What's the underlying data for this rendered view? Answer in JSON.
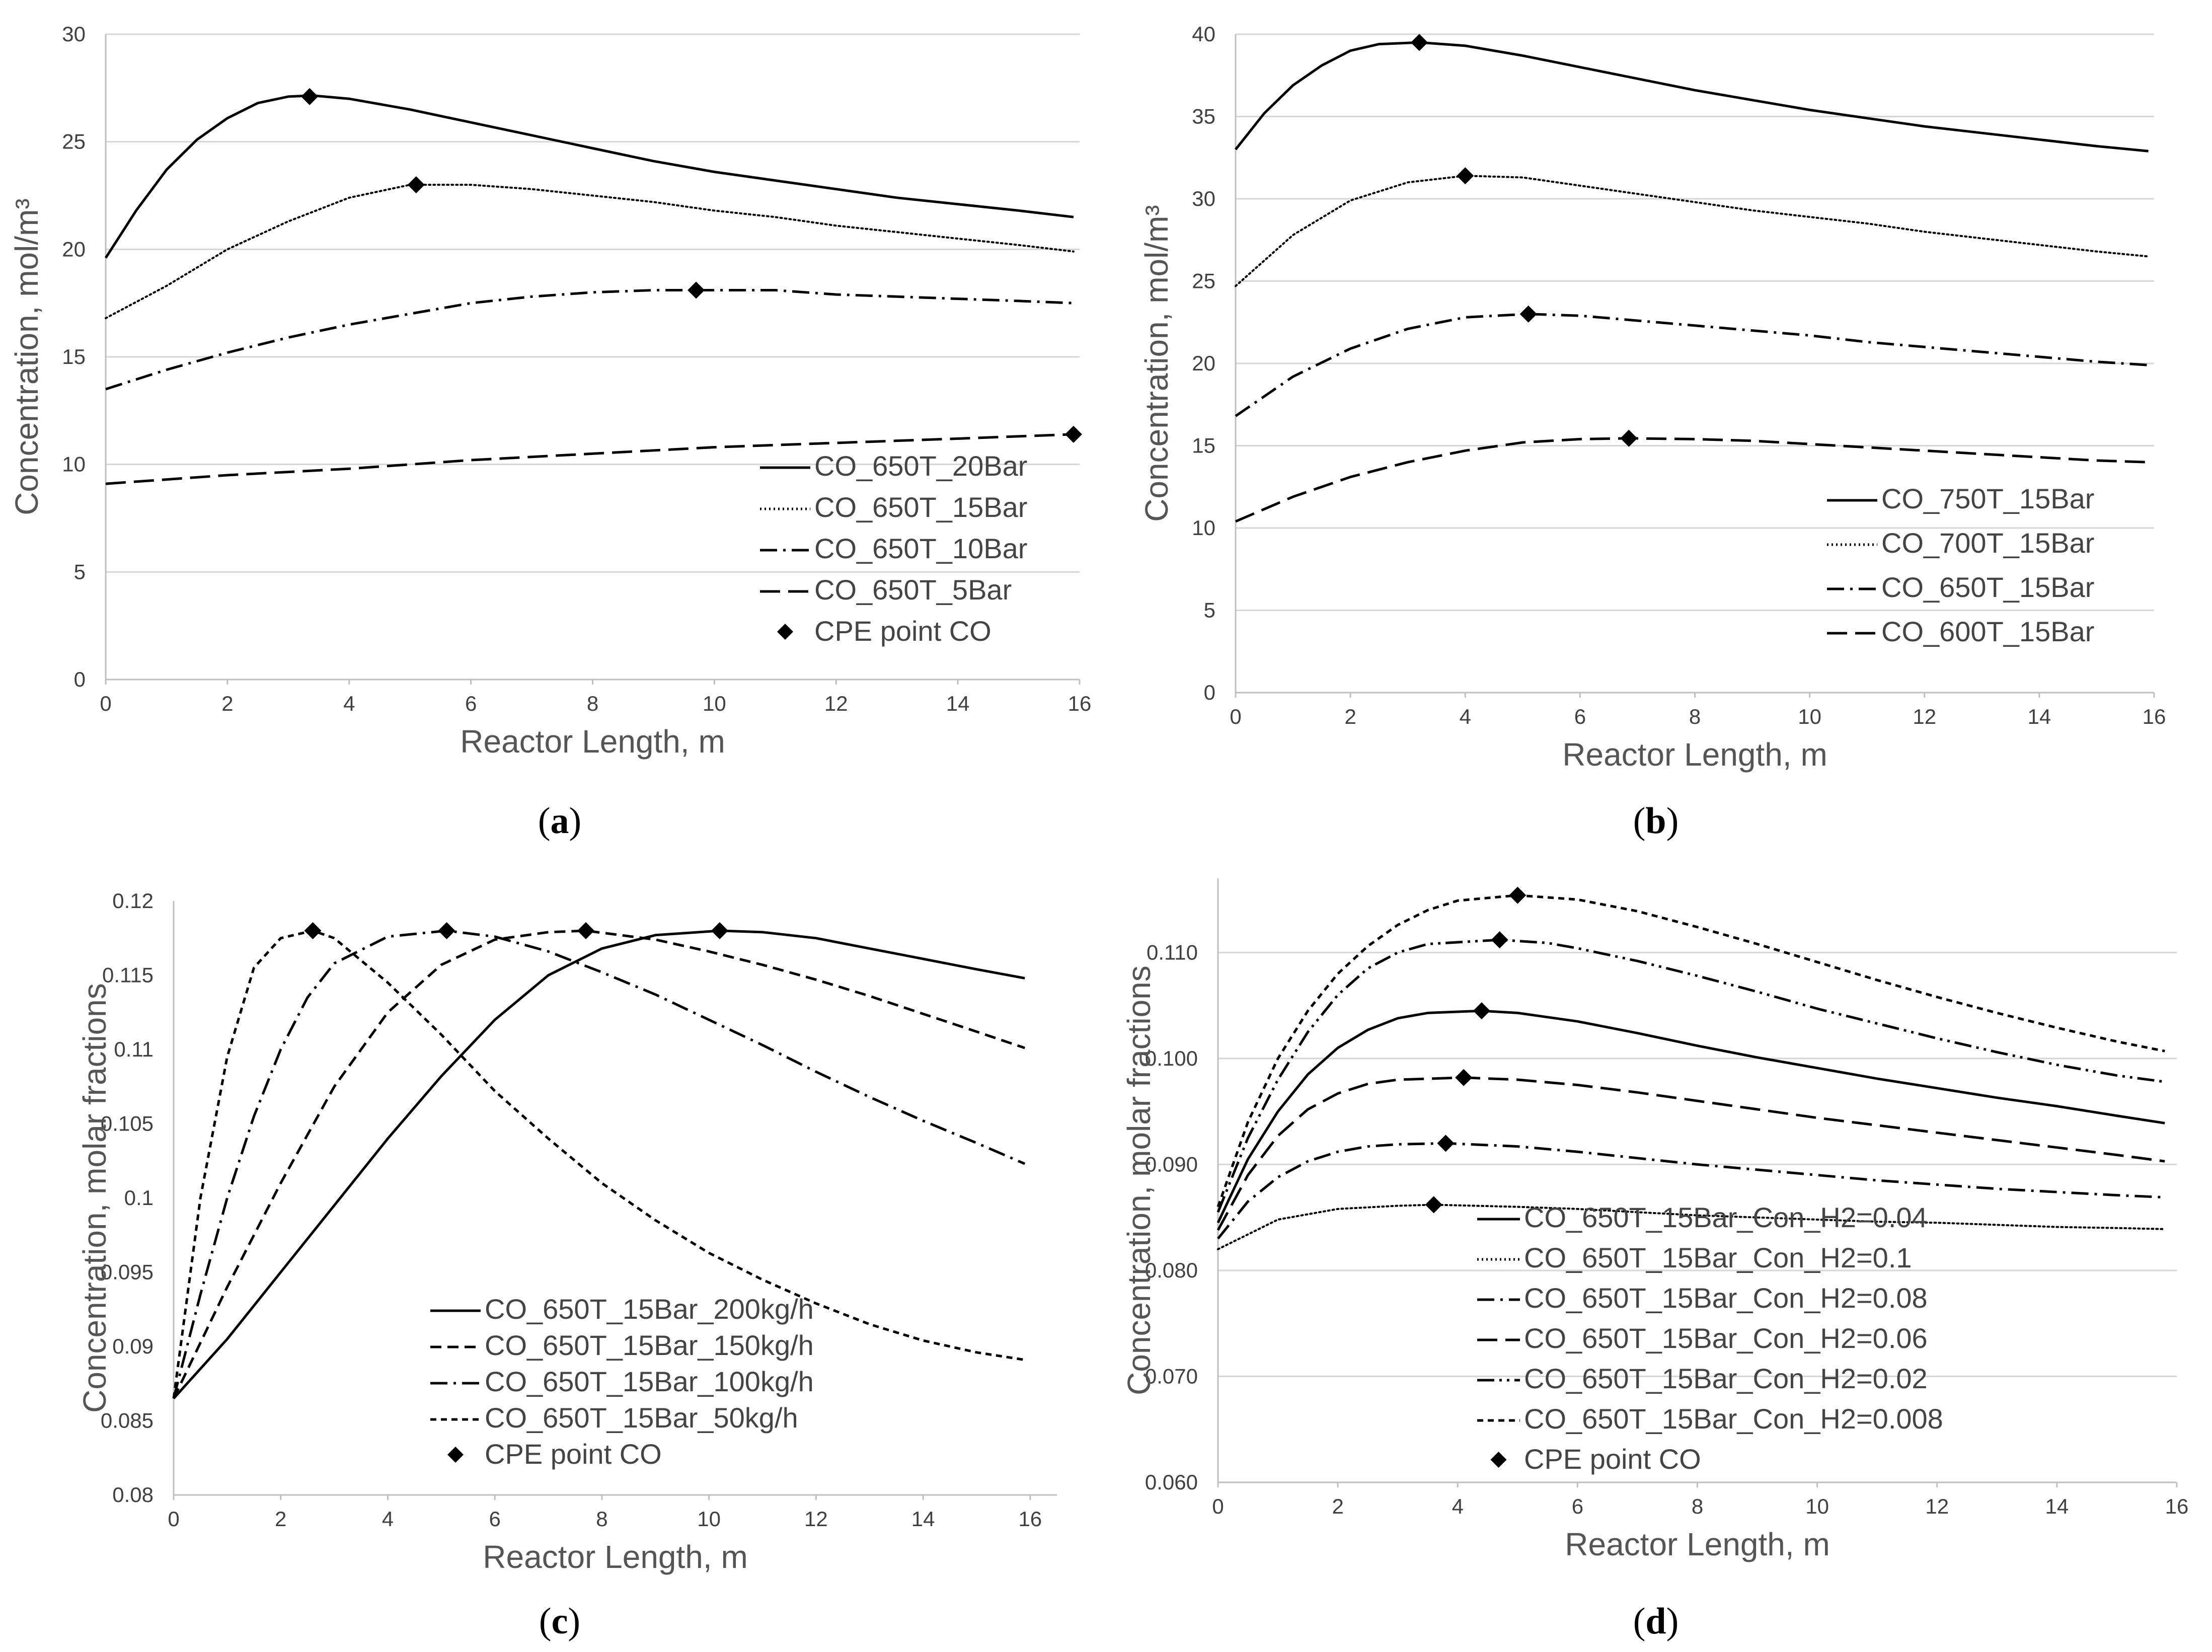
{
  "chart_data": [
    {
      "id": "a",
      "type": "line",
      "caption": [
        "(",
        "a",
        ")"
      ],
      "xlabel": "Reactor Length, m",
      "ylabel": "Concentration, mol/m³",
      "xlim": [
        0,
        16
      ],
      "ylim": [
        0,
        30
      ],
      "xticks": [
        0,
        2,
        4,
        6,
        8,
        10,
        12,
        14,
        16
      ],
      "yticks": [
        0,
        5,
        10,
        15,
        20,
        25,
        30
      ],
      "ytick_labels": [
        "0",
        "5",
        "10",
        "15",
        "20",
        "25",
        "30"
      ],
      "grid": "horizontal",
      "legend": "bottom-right",
      "series": [
        {
          "name": "CO_650T_20Bar",
          "style": "solid",
          "x": [
            0,
            0.5,
            1,
            1.5,
            2,
            2.5,
            3,
            3.4,
            4,
            5,
            6,
            7,
            8,
            9,
            10,
            11,
            12,
            13,
            14,
            15,
            15.9
          ],
          "y": [
            19.6,
            21.8,
            23.7,
            25.1,
            26.1,
            26.8,
            27.1,
            27.15,
            27.0,
            26.5,
            25.9,
            25.3,
            24.7,
            24.1,
            23.6,
            23.2,
            22.8,
            22.4,
            22.1,
            21.8,
            21.5
          ]
        },
        {
          "name": "CO_650T_15Bar",
          "style": "dotted",
          "x": [
            0,
            1,
            2,
            3,
            4,
            5,
            5.1,
            6,
            7,
            8,
            9,
            10,
            11,
            12,
            13,
            14,
            15,
            15.9
          ],
          "y": [
            16.8,
            18.3,
            20.0,
            21.3,
            22.4,
            23.0,
            23.0,
            23.0,
            22.8,
            22.5,
            22.2,
            21.8,
            21.5,
            21.1,
            20.8,
            20.5,
            20.2,
            19.9
          ]
        },
        {
          "name": "CO_650T_10Bar",
          "style": "dashdot",
          "x": [
            0,
            1,
            2,
            3,
            4,
            5,
            6,
            7,
            8,
            9,
            9.7,
            11,
            12,
            13,
            14,
            15,
            15.9
          ],
          "y": [
            13.5,
            14.4,
            15.2,
            15.9,
            16.5,
            17.0,
            17.5,
            17.8,
            18.0,
            18.1,
            18.1,
            18.1,
            17.9,
            17.8,
            17.7,
            17.6,
            17.5
          ]
        },
        {
          "name": "CO_650T_5Bar",
          "style": "longdash",
          "x": [
            0,
            2,
            4,
            6,
            8,
            10,
            12,
            14,
            15.9
          ],
          "y": [
            9.1,
            9.5,
            9.8,
            10.2,
            10.5,
            10.8,
            11.0,
            11.2,
            11.4
          ]
        }
      ],
      "cpe_points": {
        "name": "CPE point CO",
        "x": [
          3.35,
          5.1,
          9.7,
          15.9
        ],
        "y": [
          27.1,
          23.0,
          18.1,
          11.4
        ]
      }
    },
    {
      "id": "b",
      "type": "line",
      "caption": [
        "(",
        "b",
        ")"
      ],
      "xlabel": "Reactor Length, m",
      "ylabel": "Concentration, mol/m³",
      "xlim": [
        0,
        16
      ],
      "ylim": [
        0,
        40
      ],
      "xticks": [
        0,
        2,
        4,
        6,
        8,
        10,
        12,
        14,
        16
      ],
      "yticks": [
        0,
        5,
        10,
        15,
        20,
        25,
        30,
        35,
        40
      ],
      "ytick_labels": [
        "0",
        "5",
        "10",
        "15",
        "20",
        "25",
        "30",
        "35",
        "40"
      ],
      "grid": "horizontal",
      "legend": "bottom-right",
      "series": [
        {
          "name": "CO_750T_15Bar",
          "style": "solid",
          "x": [
            0,
            0.5,
            1,
            1.5,
            2,
            2.5,
            3.2,
            4,
            5,
            6,
            7,
            8,
            9,
            10,
            11,
            12,
            13,
            14,
            15,
            15.9
          ],
          "y": [
            33.0,
            35.2,
            36.9,
            38.1,
            39.0,
            39.4,
            39.5,
            39.3,
            38.7,
            38.0,
            37.3,
            36.6,
            36.0,
            35.4,
            34.9,
            34.4,
            34.0,
            33.6,
            33.2,
            32.9
          ]
        },
        {
          "name": "CO_700T_15Bar",
          "style": "dotted",
          "x": [
            0,
            1,
            2,
            3,
            4,
            5,
            6,
            7,
            8,
            9,
            10,
            11,
            12,
            13,
            14,
            15,
            15.9
          ],
          "y": [
            24.7,
            27.8,
            29.9,
            31.0,
            31.4,
            31.3,
            30.8,
            30.3,
            29.8,
            29.3,
            28.9,
            28.5,
            28.0,
            27.6,
            27.2,
            26.8,
            26.5
          ]
        },
        {
          "name": "CO_650T_15Bar",
          "style": "dashdot",
          "x": [
            0,
            1,
            2,
            3,
            4,
            5.1,
            6,
            7,
            8,
            9,
            10,
            11,
            12,
            13,
            14,
            15,
            15.9
          ],
          "y": [
            16.8,
            19.2,
            20.9,
            22.1,
            22.8,
            23.0,
            22.9,
            22.6,
            22.3,
            22.0,
            21.7,
            21.3,
            21.0,
            20.7,
            20.4,
            20.1,
            19.9
          ]
        },
        {
          "name": "CO_600T_15Bar",
          "style": "longdash",
          "x": [
            0,
            1,
            2,
            3,
            4,
            5,
            6,
            6.85,
            8,
            9,
            10,
            11,
            12,
            13,
            14,
            15,
            15.9
          ],
          "y": [
            10.4,
            11.9,
            13.1,
            14.0,
            14.7,
            15.2,
            15.4,
            15.45,
            15.4,
            15.3,
            15.1,
            14.9,
            14.7,
            14.5,
            14.3,
            14.1,
            14.0
          ]
        }
      ],
      "cpe_points": {
        "name": "",
        "x": [
          3.2,
          4.0,
          5.1,
          6.85
        ],
        "y": [
          39.5,
          31.4,
          23.0,
          15.45
        ]
      }
    },
    {
      "id": "c",
      "type": "line",
      "caption": [
        "(",
        "c",
        ")"
      ],
      "xlabel": "Reactor Length, m",
      "ylabel": "Concentration, molar fractions",
      "xlim": [
        0,
        16.5
      ],
      "ylim": [
        0.08,
        0.12
      ],
      "xticks": [
        0,
        2,
        4,
        6,
        8,
        10,
        12,
        14,
        16
      ],
      "yticks": [
        0.08,
        0.085,
        0.09,
        0.095,
        0.1,
        0.105,
        0.11,
        0.115,
        0.12
      ],
      "ytick_labels": [
        "0.08",
        "0.085",
        "0.09",
        "0.095",
        "0.1",
        "0.105",
        "0.11",
        "0.115",
        "0.12"
      ],
      "grid": "none",
      "legend": "bottom-center",
      "series": [
        {
          "name": "CO_650T_15Bar_200kg/h",
          "style": "solid",
          "x": [
            0,
            1,
            2,
            3,
            4,
            5,
            6,
            7,
            8,
            9,
            10.2,
            11,
            12,
            13,
            14,
            15,
            15.9
          ],
          "y": [
            0.0865,
            0.0905,
            0.095,
            0.0995,
            0.104,
            0.1082,
            0.112,
            0.115,
            0.1168,
            0.1177,
            0.118,
            0.1179,
            0.1175,
            0.1168,
            0.1161,
            0.1154,
            0.1148
          ]
        },
        {
          "name": "CO_650T_15Bar_150kg/h",
          "style": "dashed",
          "x": [
            0,
            1,
            2,
            3,
            4,
            5,
            6,
            7,
            7.7,
            9,
            10,
            11,
            12,
            13,
            14,
            15,
            15.9
          ],
          "y": [
            0.0865,
            0.094,
            0.101,
            0.1075,
            0.1125,
            0.1157,
            0.1174,
            0.1179,
            0.118,
            0.1174,
            0.1166,
            0.1157,
            0.1147,
            0.1136,
            0.1124,
            0.1112,
            0.1101
          ]
        },
        {
          "name": "CO_650T_15Bar_100kg/h",
          "style": "dashdot",
          "x": [
            0,
            0.5,
            1,
            1.5,
            2,
            2.5,
            3,
            4,
            5.1,
            6,
            7,
            8,
            9,
            10,
            11,
            12,
            13,
            14,
            15,
            15.9
          ],
          "y": [
            0.0865,
            0.0935,
            0.1,
            0.1055,
            0.11,
            0.1135,
            0.1158,
            0.1176,
            0.118,
            0.1176,
            0.1166,
            0.1152,
            0.1137,
            0.112,
            0.1103,
            0.1085,
            0.1068,
            0.1052,
            0.1037,
            0.1023
          ]
        },
        {
          "name": "CO_650T_15Bar_50kg/h",
          "style": "shortdash",
          "x": [
            0,
            0.5,
            1,
            1.5,
            2,
            2.6,
            3,
            4,
            5,
            6,
            7,
            8,
            9,
            10,
            11,
            12,
            13,
            14,
            15,
            15.9
          ],
          "y": [
            0.0865,
            0.1,
            0.1095,
            0.1155,
            0.1175,
            0.118,
            0.1175,
            0.1145,
            0.111,
            0.1072,
            0.104,
            0.101,
            0.0985,
            0.0963,
            0.0945,
            0.0929,
            0.0915,
            0.0904,
            0.0896,
            0.0891
          ]
        }
      ],
      "cpe_points": {
        "name": "CPE point CO",
        "x": [
          2.6,
          5.1,
          7.7,
          10.2
        ],
        "y": [
          0.118,
          0.118,
          0.118,
          0.118
        ]
      }
    },
    {
      "id": "d",
      "type": "line",
      "caption": [
        "(",
        "d",
        ")"
      ],
      "xlabel": "Reactor Length, m",
      "ylabel": "Concentration, molar  fractions",
      "xlim": [
        0,
        16
      ],
      "ylim": [
        0.06,
        0.117
      ],
      "xticks": [
        0,
        2,
        4,
        6,
        8,
        10,
        12,
        14,
        16
      ],
      "yticks": [
        0.06,
        0.07,
        0.08,
        0.09,
        0.1,
        0.11
      ],
      "ytick_labels": [
        "0.060",
        "0.070",
        "0.080",
        "0.090",
        "0.100",
        "0.110"
      ],
      "grid": "horizontal",
      "legend": "bottom-center",
      "series": [
        {
          "name": "CO_650T_15Bar_Con_H2=0.04",
          "style": "solid",
          "x": [
            0,
            0.5,
            1,
            1.5,
            2,
            2.5,
            3,
            3.5,
            4.4,
            5,
            6,
            7,
            8,
            9,
            10,
            11,
            12,
            13,
            14,
            15,
            15.8
          ],
          "y": [
            0.0845,
            0.0905,
            0.095,
            0.0985,
            0.101,
            0.1027,
            0.1038,
            0.1043,
            0.1045,
            0.1043,
            0.1035,
            0.1024,
            0.1012,
            0.1001,
            0.0991,
            0.0981,
            0.0972,
            0.0963,
            0.0955,
            0.0946,
            0.0939
          ]
        },
        {
          "name": "CO_650T_15Bar_Con_H2=0.1",
          "style": "dotted",
          "x": [
            0,
            1,
            2,
            3,
            3.6,
            5,
            6,
            7,
            8,
            9,
            10,
            11,
            12,
            13,
            14,
            15,
            15.8
          ],
          "y": [
            0.082,
            0.0848,
            0.0858,
            0.0861,
            0.0862,
            0.086,
            0.0858,
            0.0855,
            0.0852,
            0.085,
            0.0848,
            0.0846,
            0.0845,
            0.0843,
            0.0841,
            0.084,
            0.0839
          ]
        },
        {
          "name": "CO_650T_15Bar_Con_H2=0.08",
          "style": "dashdot",
          "x": [
            0,
            0.5,
            1,
            1.5,
            2,
            2.5,
            3,
            3.8,
            5,
            6,
            7,
            8,
            9,
            10,
            11,
            12,
            13,
            14,
            15,
            15.8
          ],
          "y": [
            0.083,
            0.0865,
            0.0888,
            0.0903,
            0.0912,
            0.0917,
            0.0919,
            0.092,
            0.0917,
            0.0912,
            0.0906,
            0.09,
            0.0895,
            0.089,
            0.0885,
            0.0881,
            0.0877,
            0.0874,
            0.0871,
            0.0869
          ]
        },
        {
          "name": "CO_650T_15Bar_Con_H2=0.06",
          "style": "longdash",
          "x": [
            0,
            0.5,
            1,
            1.5,
            2,
            2.5,
            3,
            4.1,
            5,
            6,
            7,
            8,
            9,
            10,
            11,
            12,
            13,
            14,
            15,
            15.8
          ],
          "y": [
            0.0838,
            0.089,
            0.0927,
            0.0952,
            0.0967,
            0.0976,
            0.098,
            0.0982,
            0.098,
            0.0975,
            0.0968,
            0.096,
            0.0952,
            0.0944,
            0.0937,
            0.093,
            0.0923,
            0.0916,
            0.0909,
            0.0903
          ]
        },
        {
          "name": "CO_650T_15Bar_Con_H2=0.02",
          "style": "dashdotdot",
          "x": [
            0,
            0.5,
            1,
            1.5,
            2,
            2.5,
            3,
            3.5,
            4.7,
            5.5,
            6,
            7,
            8,
            9,
            10,
            11,
            12,
            13,
            14,
            15,
            15.8
          ],
          "y": [
            0.0855,
            0.0925,
            0.098,
            0.1025,
            0.106,
            0.1085,
            0.11,
            0.1108,
            0.1112,
            0.1109,
            0.1104,
            0.1092,
            0.1078,
            0.1063,
            0.1047,
            0.1033,
            0.1019,
            0.1006,
            0.0994,
            0.0984,
            0.0978
          ]
        },
        {
          "name": "CO_650T_15Bar_Con_H2=0.008",
          "style": "shortdash",
          "x": [
            0,
            0.5,
            1,
            1.5,
            2,
            2.5,
            3,
            3.5,
            4,
            5,
            6,
            7,
            8,
            9,
            10,
            11,
            12,
            13,
            14,
            15,
            15.8
          ],
          "y": [
            0.086,
            0.094,
            0.1,
            0.1045,
            0.108,
            0.1106,
            0.1126,
            0.114,
            0.1149,
            0.1154,
            0.115,
            0.1139,
            0.1124,
            0.1108,
            0.1091,
            0.1074,
            0.1058,
            0.1043,
            0.1029,
            0.1016,
            0.1007
          ]
        }
      ],
      "cpe_points": {
        "name": "CPE point CO",
        "x": [
          3.6,
          3.8,
          4.1,
          4.4,
          4.7,
          5.0
        ],
        "y": [
          0.0862,
          0.092,
          0.0982,
          0.1045,
          0.1112,
          0.1154
        ]
      }
    }
  ]
}
